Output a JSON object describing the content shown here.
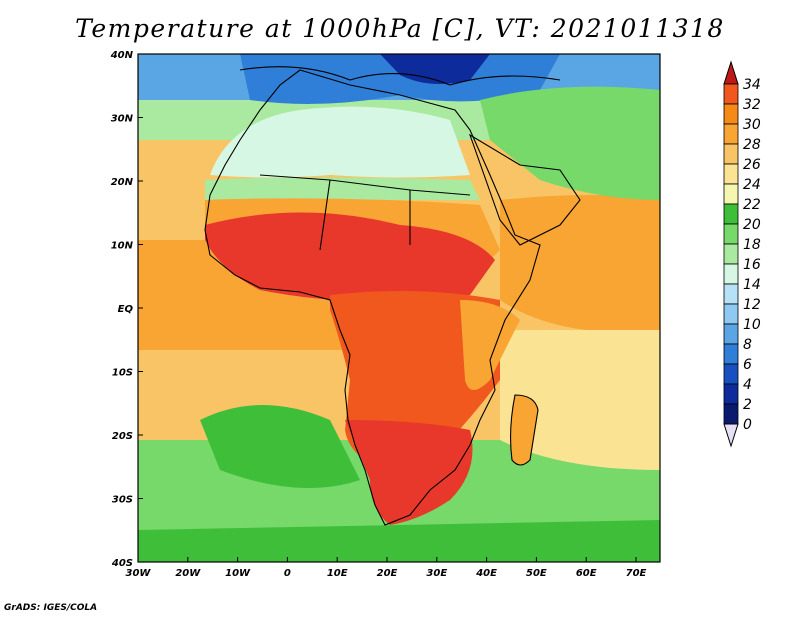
{
  "title": "Temperature at 1000hPa [C], VT: 2021011318",
  "credit": "GrADS: IGES/COLA",
  "map": {
    "lon_labels": [
      "30W",
      "20W",
      "10W",
      "0",
      "10E",
      "20E",
      "30E",
      "40E",
      "50E",
      "60E",
      "70E"
    ],
    "lat_labels": [
      "40N",
      "30N",
      "20N",
      "10N",
      "EQ",
      "10S",
      "20S",
      "30S",
      "40S"
    ]
  },
  "colorbar": {
    "levels": [
      "34",
      "32",
      "30",
      "28",
      "26",
      "24",
      "22",
      "20",
      "18",
      "16",
      "14",
      "12",
      "10",
      "8",
      "6",
      "4",
      "2",
      "0"
    ],
    "colors": [
      "#e8382b",
      "#f0581e",
      "#f58a17",
      "#f8a534",
      "#f8c465",
      "#fae493",
      "#f5f6b0",
      "#3fbe3a",
      "#76d96a",
      "#a9e9a0",
      "#d6f7e3",
      "#b7e1f6",
      "#8dc9f1",
      "#5aa6e4",
      "#2f7ed7",
      "#1850c2",
      "#0e2b9c",
      "#0a1a6e"
    ],
    "top_arrow_color": "#c01818",
    "bottom_arrow_color": "#e6e0f5"
  }
}
